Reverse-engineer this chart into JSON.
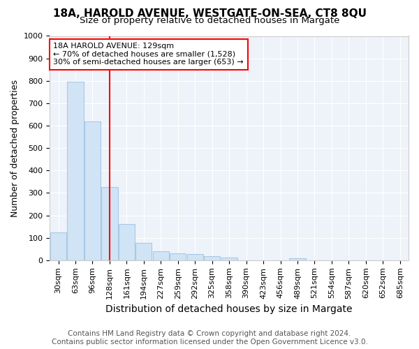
{
  "title": "18A, HAROLD AVENUE, WESTGATE-ON-SEA, CT8 8QU",
  "subtitle": "Size of property relative to detached houses in Margate",
  "xlabel": "Distribution of detached houses by size in Margate",
  "ylabel": "Number of detached properties",
  "categories": [
    "30sqm",
    "63sqm",
    "96sqm",
    "128sqm",
    "161sqm",
    "194sqm",
    "227sqm",
    "259sqm",
    "292sqm",
    "325sqm",
    "358sqm",
    "390sqm",
    "423sqm",
    "456sqm",
    "489sqm",
    "521sqm",
    "554sqm",
    "587sqm",
    "620sqm",
    "652sqm",
    "685sqm"
  ],
  "values": [
    125,
    795,
    620,
    325,
    162,
    78,
    40,
    30,
    27,
    18,
    13,
    0,
    0,
    0,
    8,
    0,
    0,
    0,
    0,
    0,
    0
  ],
  "bar_color": "#d0e4f5",
  "bar_edge_color": "#a8c8e8",
  "red_line_x": 3.0,
  "annotation_text": "18A HAROLD AVENUE: 129sqm\n← 70% of detached houses are smaller (1,528)\n30% of semi-detached houses are larger (653) →",
  "annotation_box_facecolor": "white",
  "annotation_box_edgecolor": "red",
  "ylim": [
    0,
    1000
  ],
  "yticks": [
    0,
    100,
    200,
    300,
    400,
    500,
    600,
    700,
    800,
    900,
    1000
  ],
  "background_color": "#ffffff",
  "plot_bg_color": "#eef3fa",
  "grid_color": "#ffffff",
  "title_fontsize": 11,
  "subtitle_fontsize": 9.5,
  "xlabel_fontsize": 10,
  "ylabel_fontsize": 9,
  "tick_fontsize": 8,
  "annot_fontsize": 8,
  "footer_fontsize": 7.5,
  "footer_line1": "Contains HM Land Registry data © Crown copyright and database right 2024.",
  "footer_line2": "Contains public sector information licensed under the Open Government Licence v3.0."
}
